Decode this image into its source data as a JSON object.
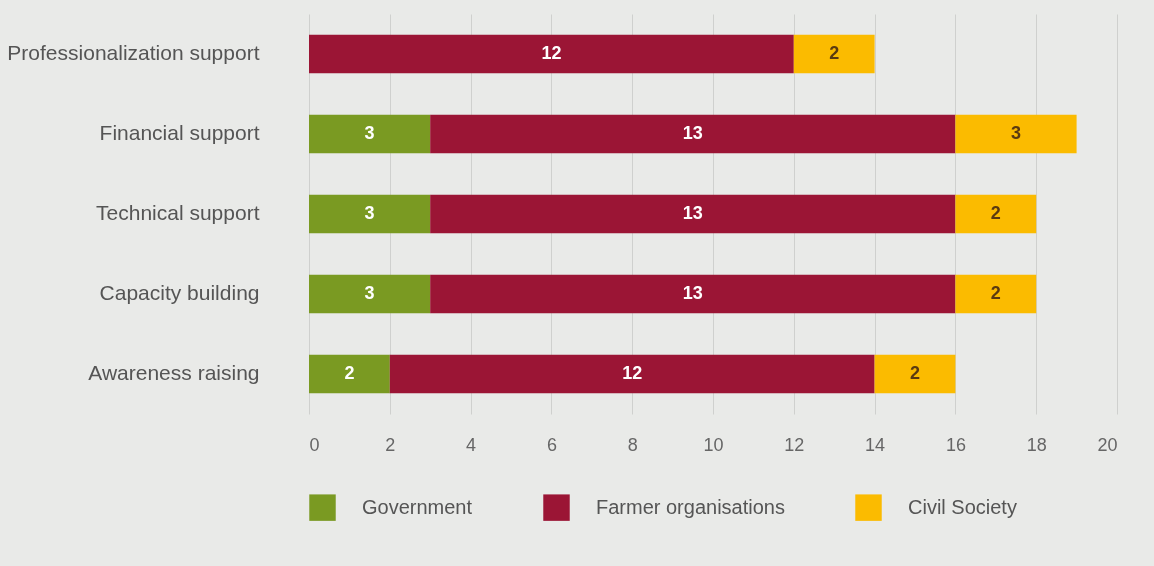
{
  "chart_data": {
    "type": "bar",
    "orientation": "horizontal",
    "stacked": true,
    "categories": [
      "Professionalization support",
      "Financial support",
      "Technical support",
      "Capacity building",
      "Awareness raising"
    ],
    "series": [
      {
        "name": "Government",
        "color": "#7a9a22",
        "values": [
          null,
          3,
          3,
          3,
          2
        ]
      },
      {
        "name": "Farmer organisations",
        "color": "#9b1535",
        "values": [
          12,
          13,
          13,
          13,
          12
        ]
      },
      {
        "name": "Civil Society",
        "color": "#fbbb00",
        "values": [
          2,
          3,
          2,
          2,
          2
        ]
      }
    ],
    "xlim": [
      0,
      20
    ],
    "xticks": [
      0,
      2,
      4,
      6,
      8,
      10,
      12,
      14,
      16,
      18,
      20
    ],
    "grid": "x",
    "legend": "bottom",
    "data_labels": true
  }
}
